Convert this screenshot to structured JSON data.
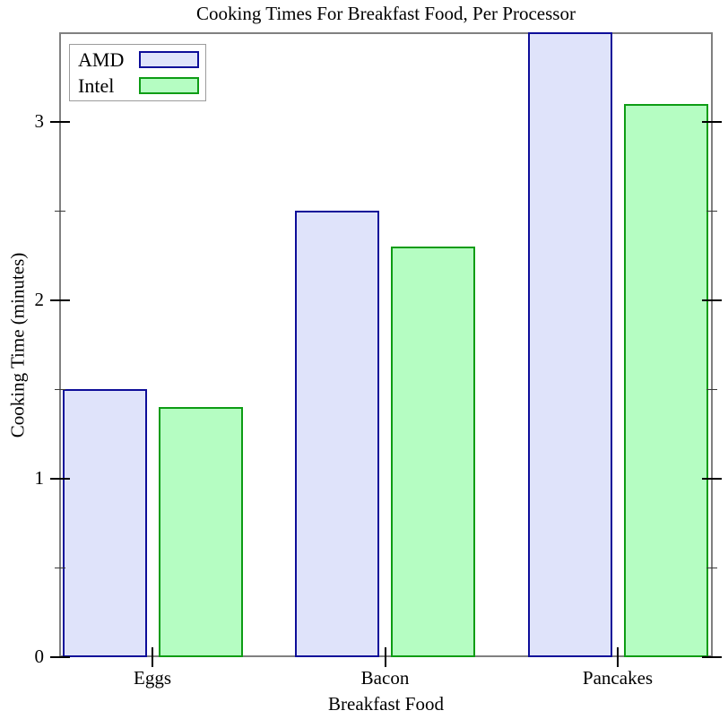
{
  "title": "Cooking Times For Breakfast Food, Per Processor",
  "chart_data": {
    "type": "bar",
    "title": "Cooking Times For Breakfast Food, Per Processor",
    "xlabel": "Breakfast Food",
    "ylabel": "Cooking Time (minutes)",
    "categories": [
      "Eggs",
      "Bacon",
      "Pancakes"
    ],
    "series": [
      {
        "name": "AMD",
        "values": [
          1.5,
          2.5,
          3.5
        ],
        "fill": "#dfe3fa",
        "border": "#0d0d99"
      },
      {
        "name": "Intel",
        "values": [
          1.4,
          2.3,
          3.1
        ],
        "fill": "#b5fdc2",
        "border": "#0d9c14"
      }
    ],
    "ylim": [
      0,
      3.5
    ],
    "yticks_major": [
      0,
      1,
      2,
      3
    ],
    "yticks_minor": [
      0.5,
      1.5,
      2.5
    ],
    "grid": false,
    "legend_position": "top-left",
    "colors": {
      "axis_frame": "#808080",
      "tick": "#000000",
      "text": "#000000",
      "background": "#ffffff"
    }
  }
}
